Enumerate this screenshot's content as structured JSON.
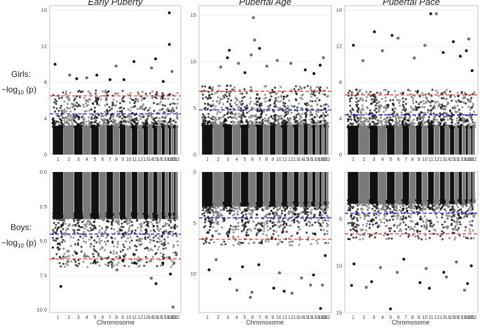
{
  "figure": {
    "row_labels": [
      {
        "name": "Girls:",
        "expr": "−log",
        "sub": "10",
        "tail": " (p)"
      },
      {
        "name": "Boys:",
        "expr": "−log",
        "sub": "10",
        "tail": " (p)"
      }
    ],
    "xlabel": "Chromosome"
  },
  "chart_data": [
    {
      "type": "scatter",
      "row": "Girls",
      "title": "Early Puberty",
      "ylabel": "-log10(p)",
      "xlabel": "",
      "ylim": [
        0,
        16.5
      ],
      "yticks": [
        0,
        4,
        8,
        12,
        16
      ],
      "reversed": false,
      "thresholds": {
        "red": 6.5,
        "blue": 4.5
      },
      "chromosomes": [
        1,
        2,
        3,
        4,
        5,
        6,
        7,
        8,
        9,
        10,
        11,
        12,
        13,
        14,
        15,
        16,
        17,
        18,
        19,
        20,
        21,
        22
      ],
      "notable_points": [
        {
          "chr": 1,
          "p": 10
        },
        {
          "chr": 2,
          "p": 8.8
        },
        {
          "chr": 3,
          "p": 8.4
        },
        {
          "chr": 4,
          "p": 8.5
        },
        {
          "chr": 5,
          "p": 8.8
        },
        {
          "chr": 7,
          "p": 8.3
        },
        {
          "chr": 8,
          "p": 9.8
        },
        {
          "chr": 9,
          "p": 8.3
        },
        {
          "chr": 11,
          "p": 10.3
        },
        {
          "chr": 14,
          "p": 9.6
        },
        {
          "chr": 15,
          "p": 10.6
        },
        {
          "chr": 17,
          "p": 8.1
        },
        {
          "chr": 19,
          "p": 15.7
        },
        {
          "chr": 19,
          "p": 12.2
        },
        {
          "chr": 20,
          "p": 9.2
        }
      ]
    },
    {
      "type": "scatter",
      "row": "Girls",
      "title": "Pubertal Age",
      "ylabel": "-log10(p)",
      "xlabel": "",
      "ylim": [
        0,
        16
      ],
      "yticks": [
        0,
        5,
        10,
        15
      ],
      "reversed": false,
      "thresholds": {
        "red": 6.8,
        "blue": 4.8
      },
      "chromosomes": [
        1,
        2,
        3,
        4,
        5,
        6,
        7,
        8,
        9,
        10,
        11,
        12,
        13,
        14,
        15,
        16,
        17,
        18,
        19,
        20,
        21,
        22
      ],
      "notable_points": [
        {
          "chr": 2,
          "p": 9.4
        },
        {
          "chr": 3,
          "p": 11.2
        },
        {
          "chr": 3,
          "p": 10.4
        },
        {
          "chr": 4,
          "p": 9.8
        },
        {
          "chr": 5,
          "p": 8.8
        },
        {
          "chr": 6,
          "p": 14.7
        },
        {
          "chr": 6,
          "p": 12.3
        },
        {
          "chr": 6,
          "p": 10.7
        },
        {
          "chr": 7,
          "p": 11.4
        },
        {
          "chr": 8,
          "p": 9.5
        },
        {
          "chr": 10,
          "p": 10.1
        },
        {
          "chr": 12,
          "p": 9.8
        },
        {
          "chr": 15,
          "p": 9.1
        },
        {
          "chr": 17,
          "p": 8.7
        },
        {
          "chr": 19,
          "p": 9.6
        },
        {
          "chr": 20,
          "p": 10.4
        }
      ]
    },
    {
      "type": "scatter",
      "row": "Girls",
      "title": "Pubertal Pace",
      "ylabel": "-log10(p)",
      "xlabel": "",
      "ylim": [
        0,
        16.5
      ],
      "yticks": [
        0,
        4,
        8,
        12,
        16
      ],
      "reversed": false,
      "thresholds": {
        "red": 6.6,
        "blue": 4.4
      },
      "chromosomes": [
        1,
        2,
        3,
        4,
        5,
        6,
        7,
        8,
        9,
        10,
        11,
        12,
        13,
        14,
        15,
        16,
        17,
        18,
        19,
        20,
        21,
        22
      ],
      "notable_points": [
        {
          "chr": 1,
          "p": 12.1
        },
        {
          "chr": 2,
          "p": 10.4
        },
        {
          "chr": 3,
          "p": 13.6
        },
        {
          "chr": 4,
          "p": 11.5
        },
        {
          "chr": 5,
          "p": 13.2
        },
        {
          "chr": 6,
          "p": 12.9
        },
        {
          "chr": 8,
          "p": 10.7
        },
        {
          "chr": 10,
          "p": 12.1
        },
        {
          "chr": 11,
          "p": 15.6
        },
        {
          "chr": 12,
          "p": 15.6
        },
        {
          "chr": 13,
          "p": 11.3
        },
        {
          "chr": 15,
          "p": 12.5
        },
        {
          "chr": 17,
          "p": 10.9
        },
        {
          "chr": 19,
          "p": 11.5
        },
        {
          "chr": 20,
          "p": 12.8
        },
        {
          "chr": 21,
          "p": 9.3
        }
      ]
    },
    {
      "type": "scatter",
      "row": "Boys",
      "title": "",
      "ylabel": "-log10(p)",
      "xlabel": "Chromosome",
      "ylim": [
        0,
        10.2
      ],
      "yticks": [
        0.0,
        2.5,
        5.0,
        7.5,
        10.0
      ],
      "ytick_labels": [
        "0.0",
        "2.5",
        "5.0",
        "7.5",
        "10.0"
      ],
      "reversed": true,
      "thresholds": {
        "red": 6.3,
        "blue": 4.5
      },
      "chromosomes": [
        1,
        2,
        3,
        4,
        5,
        6,
        7,
        8,
        9,
        10,
        11,
        12,
        13,
        14,
        15,
        16,
        17,
        18,
        19,
        20,
        21,
        22
      ],
      "notable_points": [
        {
          "chr": 1,
          "p": 8.3
        },
        {
          "chr": 2,
          "p": 6.5
        },
        {
          "chr": 3,
          "p": 5.9
        },
        {
          "chr": 4,
          "p": 6.1
        },
        {
          "chr": 5,
          "p": 6.5
        },
        {
          "chr": 6,
          "p": 6.3
        },
        {
          "chr": 8,
          "p": 7.1
        },
        {
          "chr": 9,
          "p": 6.4
        },
        {
          "chr": 11,
          "p": 6.6
        },
        {
          "chr": 12,
          "p": 6.4
        },
        {
          "chr": 14,
          "p": 7.7
        },
        {
          "chr": 15,
          "p": 8.1
        },
        {
          "chr": 17,
          "p": 6.6
        },
        {
          "chr": 19,
          "p": 7.4
        },
        {
          "chr": 20,
          "p": 9.8
        },
        {
          "chr": 22,
          "p": 6.0
        }
      ]
    },
    {
      "type": "scatter",
      "row": "Boys",
      "title": "",
      "ylabel": "-log10(p)",
      "xlabel": "Chromosome",
      "ylim": [
        0,
        13.8
      ],
      "yticks": [
        0,
        5,
        10
      ],
      "reversed": true,
      "thresholds": {
        "red": 6.6,
        "blue": 4.5
      },
      "chromosomes": [
        1,
        2,
        3,
        4,
        5,
        6,
        7,
        8,
        9,
        10,
        11,
        12,
        13,
        14,
        15,
        16,
        17,
        18,
        19,
        20,
        21,
        22
      ],
      "notable_points": [
        {
          "chr": 1,
          "p": 9.6
        },
        {
          "chr": 2,
          "p": 8.6
        },
        {
          "chr": 3,
          "p": 10.5
        },
        {
          "chr": 4,
          "p": 11.6
        },
        {
          "chr": 5,
          "p": 9.3
        },
        {
          "chr": 6,
          "p": 11.8
        },
        {
          "chr": 6,
          "p": 12.3
        },
        {
          "chr": 7,
          "p": 9.1
        },
        {
          "chr": 9,
          "p": 11.4
        },
        {
          "chr": 10,
          "p": 9.9
        },
        {
          "chr": 11,
          "p": 11.7
        },
        {
          "chr": 12,
          "p": 11.9
        },
        {
          "chr": 14,
          "p": 10.4
        },
        {
          "chr": 16,
          "p": 11.1
        },
        {
          "chr": 17,
          "p": 10.1
        },
        {
          "chr": 19,
          "p": 13.4
        },
        {
          "chr": 20,
          "p": 11.1
        },
        {
          "chr": 21,
          "p": 8.2
        }
      ]
    },
    {
      "type": "scatter",
      "row": "Boys",
      "title": "",
      "ylabel": "-log10(p)",
      "xlabel": "Chromosome",
      "ylim": [
        0,
        15
      ],
      "yticks": [
        5,
        10,
        15
      ],
      "reversed": true,
      "thresholds": {
        "red": 6.6,
        "blue": 4.4
      },
      "chromosomes": [
        1,
        2,
        3,
        4,
        5,
        6,
        7,
        8,
        9,
        10,
        11,
        12,
        13,
        14,
        15,
        16,
        17,
        18,
        19,
        20,
        21,
        22
      ],
      "notable_points": [
        {
          "chr": 1,
          "p": 12.1
        },
        {
          "chr": 1,
          "p": 9.8
        },
        {
          "chr": 2,
          "p": 12.3
        },
        {
          "chr": 3,
          "p": 11.7
        },
        {
          "chr": 4,
          "p": 10.2
        },
        {
          "chr": 5,
          "p": 14.6
        },
        {
          "chr": 6,
          "p": 10.7
        },
        {
          "chr": 7,
          "p": 9.3
        },
        {
          "chr": 9,
          "p": 11.8
        },
        {
          "chr": 10,
          "p": 10.3
        },
        {
          "chr": 11,
          "p": 12.4
        },
        {
          "chr": 13,
          "p": 10.7
        },
        {
          "chr": 14,
          "p": 11.2
        },
        {
          "chr": 16,
          "p": 9.6
        },
        {
          "chr": 18,
          "p": 12.6
        },
        {
          "chr": 19,
          "p": 11.9
        },
        {
          "chr": 21,
          "p": 10.0
        }
      ]
    }
  ]
}
